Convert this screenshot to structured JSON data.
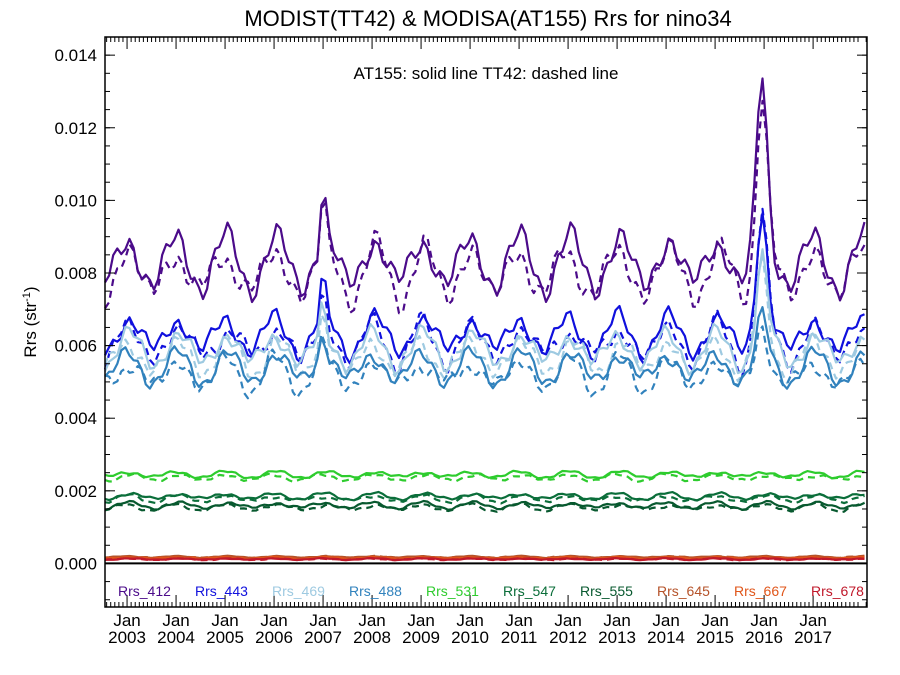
{
  "chart_data": {
    "type": "line",
    "title": "MODIST(TT42) & MODISA(AT155)  Rrs for nino34",
    "ylabel": "Rrs (str",
    "ylabel_sup": "-1",
    "ylabel_close": ")",
    "ylim": [
      -0.0012,
      0.0145
    ],
    "yticks": [
      "0.000",
      "0.002",
      "0.004",
      "0.006",
      "0.008",
      "0.010",
      "0.012",
      "0.014"
    ],
    "ytick_values": [
      0.0,
      0.002,
      0.004,
      0.006,
      0.008,
      0.01,
      0.012,
      0.014
    ],
    "xlim": [
      2002.55,
      2018.1
    ],
    "xtick_month": "Jan",
    "xtick_years": [
      "2003",
      "2004",
      "2005",
      "2006",
      "2007",
      "2008",
      "2009",
      "2010",
      "2011",
      "2012",
      "2013",
      "2014",
      "2015",
      "2016",
      "2017"
    ],
    "annotation": "AT155: solid line    TT42: dashed line",
    "zero_line": true,
    "series": [
      {
        "name": "Rrs_412",
        "color": "#4b0b8a",
        "base": 0.0083,
        "amp": 0.0007,
        "peak2007": 0.0016,
        "peak2016": 0.0047
      },
      {
        "name": "Rrs_443",
        "color": "#1010dd",
        "base": 0.0063,
        "amp": 0.0005,
        "peak2007": 0.0011,
        "peak2016": 0.0031
      },
      {
        "name": "Rrs_469",
        "color": "#9ecae1",
        "base": 0.0059,
        "amp": 0.00045,
        "peak2007": 0.0009,
        "peak2016": 0.0022
      },
      {
        "name": "Rrs_488",
        "color": "#3182bd",
        "base": 0.0054,
        "amp": 0.0004,
        "peak2007": 0.0007,
        "peak2016": 0.0011
      },
      {
        "name": "Rrs_531",
        "color": "#2ecc2e",
        "base": 0.00245,
        "amp": 8e-05,
        "peak2007": 0.0,
        "peak2016": 0.0
      },
      {
        "name": "Rrs_547",
        "color": "#0b6e3a",
        "base": 0.00185,
        "amp": 8e-05,
        "peak2007": 0.0,
        "peak2016": 0.0
      },
      {
        "name": "Rrs_555",
        "color": "#08592f",
        "base": 0.0016,
        "amp": 8e-05,
        "peak2007": 0.0,
        "peak2016": 0.0
      },
      {
        "name": "Rrs_645",
        "color": "#b5532a",
        "base": 0.00018,
        "amp": 2e-05,
        "peak2007": 0.0,
        "peak2016": 0.0
      },
      {
        "name": "Rrs_667",
        "color": "#e0561a",
        "base": 0.00015,
        "amp": 2e-05,
        "peak2007": 0.0,
        "peak2016": 0.0
      },
      {
        "name": "Rrs_678",
        "color": "#c0182a",
        "base": 0.00012,
        "amp": 2e-05,
        "peak2007": 0.0,
        "peak2016": 0.0
      }
    ]
  }
}
